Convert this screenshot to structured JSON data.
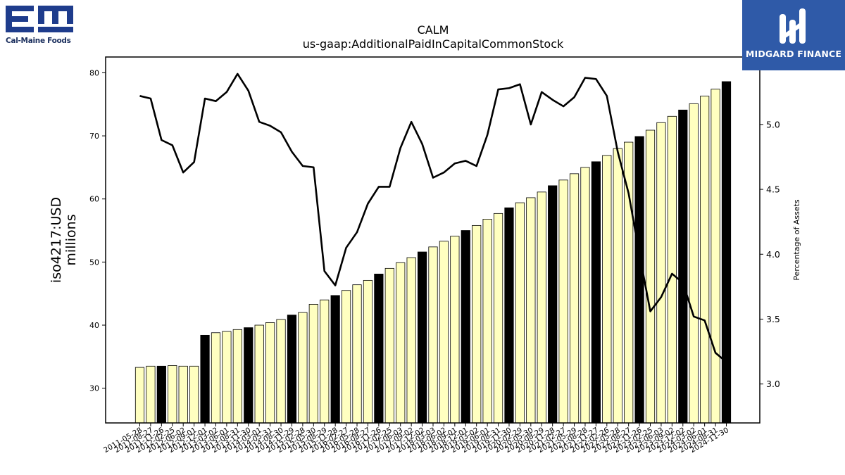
{
  "logos": {
    "left": {
      "text": "Cal-Maine Foods",
      "color": "#1e3c8c"
    },
    "right": {
      "text": "MIDGARD FINANCE",
      "background": "#2f5aa8"
    }
  },
  "chart_data": {
    "type": "bar",
    "title": "CALM",
    "subtitle": "us-gaap:AdditionalPaidInCapitalCommonStock",
    "ylabel": "iso4217:USD\nmillions",
    "y2label": "Percentage of Assets",
    "ylim": [
      24.5,
      82.5
    ],
    "y2lim": [
      2.7,
      5.52
    ],
    "yticks": [
      30,
      40,
      50,
      60,
      70,
      80
    ],
    "y2ticks": [
      3.0,
      3.5,
      4.0,
      4.5,
      5.0
    ],
    "grid": false,
    "bar_fill": "#ffffc0",
    "bar_highlight": "#000000",
    "categories": [
      "2011-05-28",
      "2011-08-27",
      "2011-11-26",
      "2012-02-25",
      "2012-06-02",
      "2012-09-01",
      "2012-12-01",
      "2013-03-02",
      "2013-06-01",
      "2013-08-31",
      "2013-11-30",
      "2014-03-01",
      "2014-05-31",
      "2014-08-30",
      "2014-11-29",
      "2015-02-28",
      "2015-05-30",
      "2015-08-29",
      "2015-11-28",
      "2016-02-27",
      "2016-05-28",
      "2016-08-27",
      "2016-11-26",
      "2017-02-25",
      "2017-06-03",
      "2017-09-02",
      "2017-12-02",
      "2018-03-03",
      "2018-06-02",
      "2018-09-01",
      "2018-12-01",
      "2019-03-02",
      "2019-06-01",
      "2019-08-31",
      "2019-11-30",
      "2020-02-29",
      "2020-05-30",
      "2020-08-29",
      "2020-11-28",
      "2021-02-27",
      "2021-05-29",
      "2021-08-28",
      "2021-11-27",
      "2022-02-26",
      "2022-05-28",
      "2022-08-27",
      "2022-11-26",
      "2023-02-25",
      "2023-06-03",
      "2023-09-02",
      "2023-12-02",
      "2024-03-02",
      "2024-06-01",
      "2024-08-31",
      "2024-11-30"
    ],
    "tick_labels": [
      "2011-05-28",
      "2011-08-27",
      "2011-11-26",
      "2012-02-25",
      "2012-06-02",
      "2012-09-01",
      "2012-12-01",
      "2013-03-02",
      "2013-06-01",
      "2013-08-31",
      "2013-11-30",
      "2014-03-01",
      "2014-05-31",
      "2014-08-30",
      "2014-11-29",
      "2015-02-28",
      "2015-05-30",
      "2015-08-29",
      "2015-11-28",
      "2016-02-27",
      "2016-05-28",
      "2016-08-27",
      "2016-11-26",
      "2017-02-25",
      "2017-06-03",
      "2017-09-02",
      "2017-12-02",
      "2018-03-03",
      "2018-06-02",
      "2018-09-01",
      "2018-12-01",
      "2019-03-02",
      "2019-06-01",
      "2019-08-31",
      "2019-11-30",
      "2020-02-29",
      "2020-05-30",
      "2020-08-29",
      "2020-11-28",
      "2021-02-27",
      "2021-05-29",
      "2021-08-28",
      "2021-11-27",
      "2022-02-26",
      "2022-05-28",
      "2022-08-27",
      "2022-11-26",
      "2023-02-25",
      "2023-06-03",
      "2023-09-02",
      "2023-12-02",
      "2024-03-02",
      "2024-06-01",
      "2024-08-31",
      "2024-11-30"
    ],
    "series": [
      {
        "axis": "left",
        "values": [
          33.3,
          33.5,
          33.5,
          33.6,
          33.5,
          33.5,
          38.4,
          38.8,
          39.0,
          39.3,
          39.6,
          40.0,
          40.4,
          40.9,
          41.6,
          42.0,
          43.3,
          44.0,
          44.7,
          45.5,
          46.4,
          47.1,
          48.1,
          49.0,
          49.9,
          50.7,
          51.6,
          52.4,
          53.3,
          54.1,
          55.0,
          55.8,
          56.8,
          57.7,
          58.6,
          59.4,
          60.2,
          61.1,
          62.1,
          63.0,
          64.0,
          65.0,
          65.9,
          66.9,
          68.0,
          69.0,
          69.9,
          70.9,
          72.1,
          73.1,
          74.1,
          75.1,
          76.3,
          77.4,
          78.6
        ],
        "highlight": [
          false,
          false,
          true,
          false,
          false,
          false,
          true,
          false,
          false,
          false,
          true,
          false,
          false,
          false,
          true,
          false,
          false,
          false,
          true,
          false,
          false,
          false,
          true,
          false,
          false,
          false,
          true,
          false,
          false,
          false,
          true,
          false,
          false,
          false,
          true,
          false,
          false,
          false,
          true,
          false,
          false,
          false,
          true,
          false,
          false,
          false,
          true,
          false,
          false,
          false,
          true,
          false,
          false,
          false,
          true
        ]
      },
      {
        "type": "line",
        "axis": "right",
        "color": "#000000",
        "values": [
          5.22,
          5.2,
          4.88,
          4.84,
          4.63,
          4.71,
          5.2,
          5.18,
          5.25,
          5.39,
          5.26,
          5.02,
          4.99,
          4.94,
          4.79,
          4.68,
          4.67,
          3.87,
          3.76,
          4.05,
          4.17,
          4.39,
          4.52,
          4.52,
          4.82,
          5.02,
          4.85,
          4.59,
          4.63,
          4.7,
          4.72,
          4.68,
          4.92,
          5.27,
          5.28,
          5.31,
          5.0,
          5.25,
          5.19,
          5.14,
          5.21,
          5.36,
          5.35,
          5.22,
          4.79,
          4.47,
          4.0,
          3.56,
          3.67,
          3.85,
          3.78,
          3.52,
          3.49,
          3.24,
          3.17
        ]
      }
    ]
  }
}
